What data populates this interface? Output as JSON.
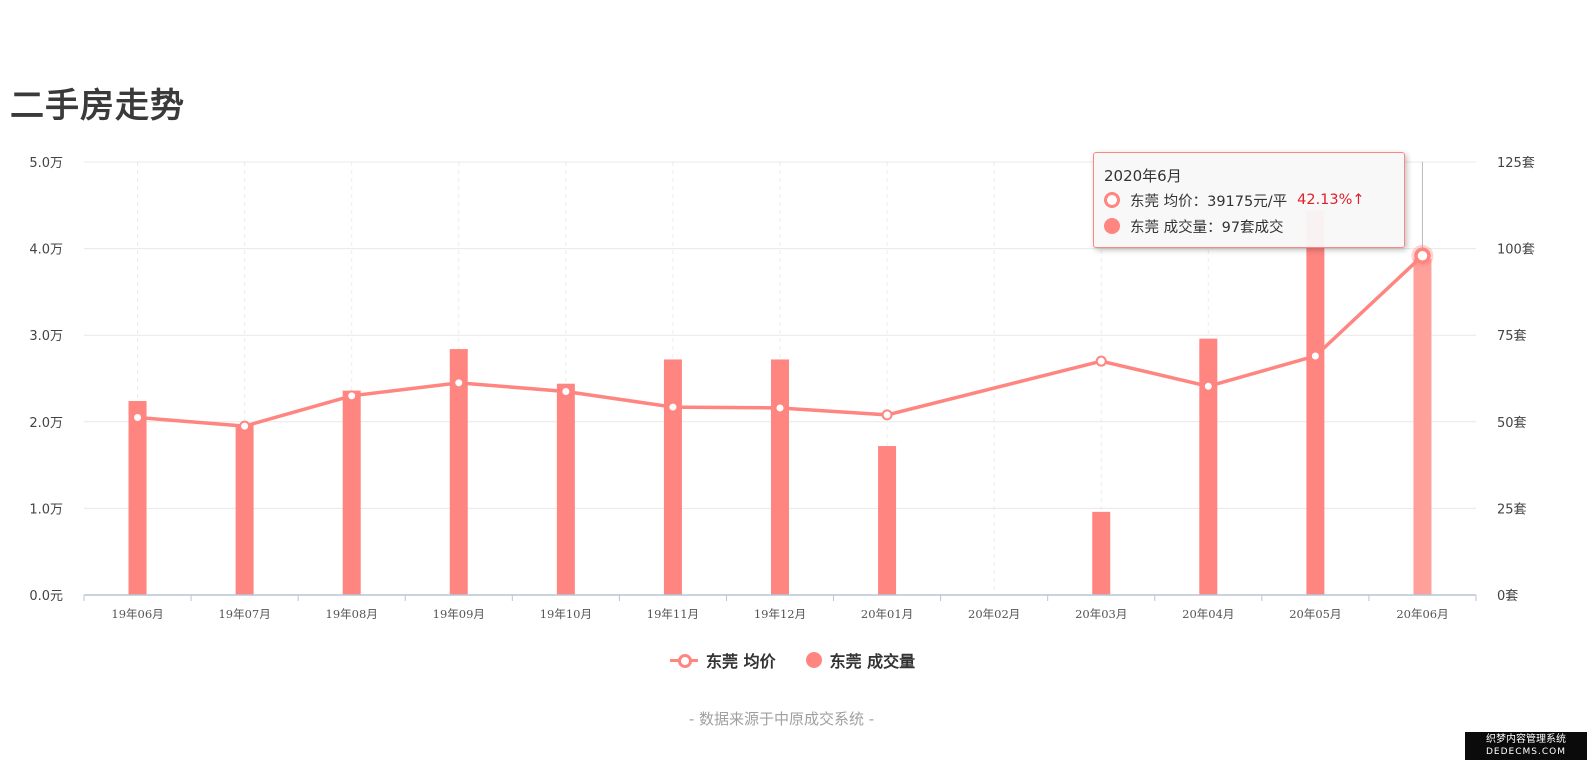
{
  "page_title": "二手房走势",
  "source_note": "- 数据来源于中原成交系统 -",
  "watermark": {
    "line1": "织梦内容管理系统",
    "line2": "DEDECMS.COM"
  },
  "colors": {
    "series": "#ff8580",
    "tooltip_change": "#e0202b",
    "grid": "#e8e8e8"
  },
  "legend": [
    {
      "label": "东莞 均价",
      "icon": "line-with-ring-icon"
    },
    {
      "label": "东莞 成交量",
      "icon": "filled-circle-icon"
    }
  ],
  "tooltip": {
    "title": "2020年6月",
    "price_label": "东莞 均价：39175元/平",
    "price_change": "42.13%↑",
    "volume_label": "东莞 成交量：97套成交"
  },
  "chart_data": {
    "type": "bar",
    "categories": [
      "19年06月",
      "19年07月",
      "19年08月",
      "19年09月",
      "19年10月",
      "19年11月",
      "19年12月",
      "20年01月",
      "20年02月",
      "20年03月",
      "20年04月",
      "20年05月",
      "20年06月"
    ],
    "left_axis": {
      "ylim": [
        0,
        50000
      ],
      "ticks": [
        "0.0元",
        "1.0万",
        "2.0万",
        "3.0万",
        "4.0万",
        "5.0万"
      ]
    },
    "right_axis": {
      "ylim": [
        0,
        125
      ],
      "ticks": [
        "0套",
        "25套",
        "50套",
        "75套",
        "100套",
        "125套"
      ]
    },
    "series": [
      {
        "name": "东莞 成交量",
        "type": "bar",
        "axis": "right",
        "values": [
          56,
          49,
          59,
          71,
          61,
          68,
          68,
          43,
          0,
          24,
          74,
          111,
          97
        ]
      },
      {
        "name": "东莞 均价",
        "type": "line",
        "axis": "left",
        "values": [
          20500,
          19500,
          23000,
          24500,
          23500,
          21700,
          21600,
          20800,
          null,
          27000,
          24100,
          27600,
          39175
        ]
      }
    ],
    "highlighted_index": 12,
    "grid": true
  }
}
